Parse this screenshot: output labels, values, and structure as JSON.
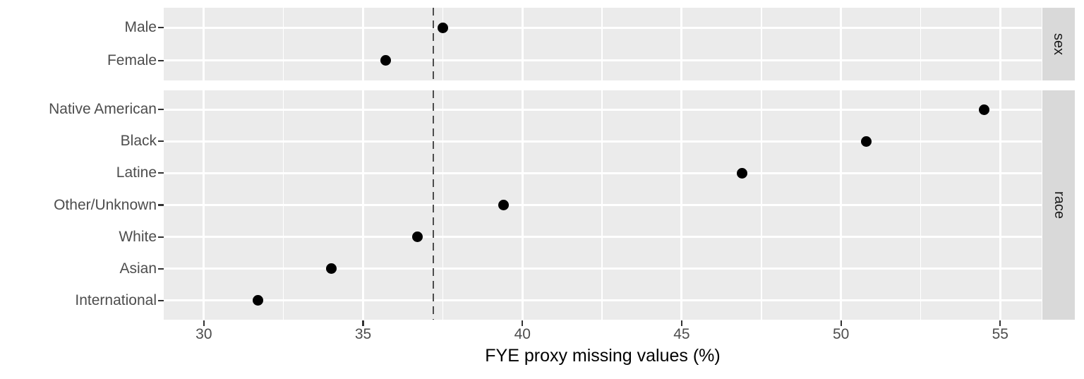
{
  "chart_data": {
    "type": "scatter",
    "title": "",
    "xlabel": "FYE proxy missing values (%)",
    "ylabel": "",
    "x_ticks": [
      30,
      35,
      40,
      45,
      50,
      55
    ],
    "x_minor_ticks": [
      32.5,
      37.5,
      42.5,
      47.5,
      52.5
    ],
    "xlim": [
      28.74,
      56.3
    ],
    "grid": true,
    "legend_position": "none",
    "reference_line": {
      "x": 37.2,
      "style": "dashed",
      "orientation": "vertical"
    },
    "facets": [
      {
        "label": "sex",
        "categories": [
          "Male",
          "Female"
        ],
        "values": [
          37.5,
          35.7
        ]
      },
      {
        "label": "race",
        "categories": [
          "Native American",
          "Black",
          "Latine",
          "Other/Unknown",
          "White",
          "Asian",
          "International"
        ],
        "values": [
          54.5,
          50.8,
          46.9,
          39.4,
          36.7,
          34.0,
          31.7
        ]
      }
    ]
  },
  "colors": {
    "panel_bg": "#ebebeb",
    "strip_bg": "#d9d9d9",
    "grid": "#ffffff",
    "point": "#000000",
    "reference_line": "#4d4d4d",
    "axis_text": "#4d4d4d",
    "strip_text": "#1a1a1a",
    "axis_title": "#000000",
    "tick_mark": "#333333"
  }
}
